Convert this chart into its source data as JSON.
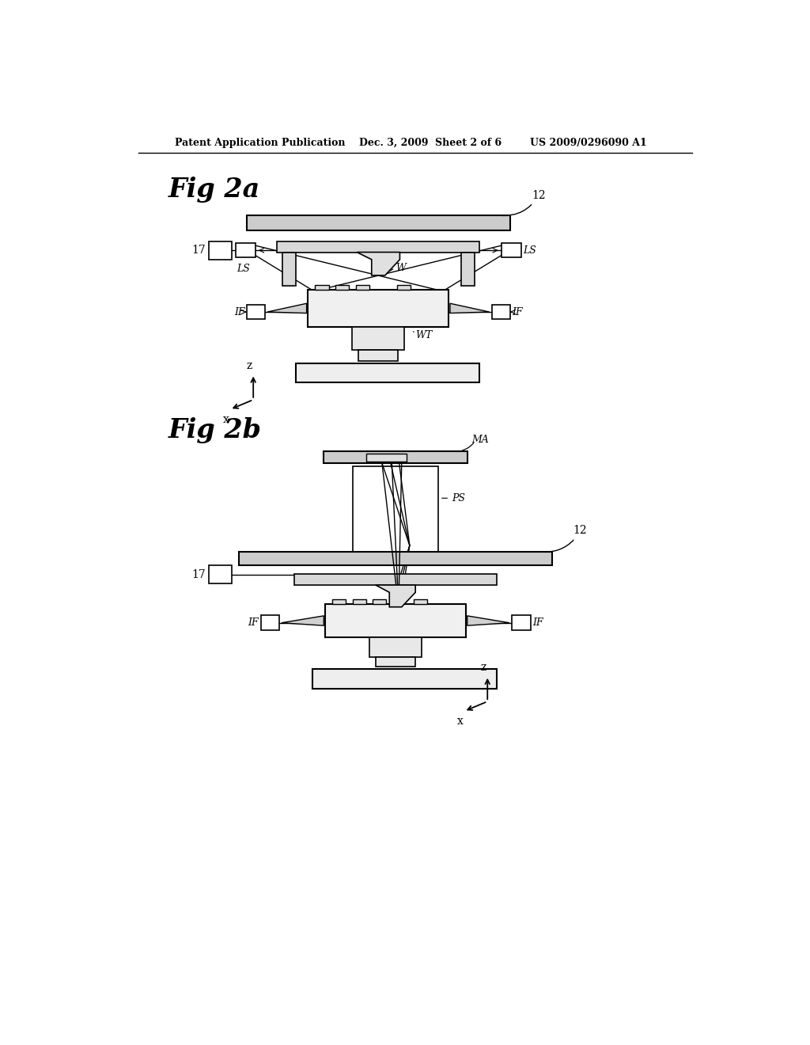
{
  "bg_color": "#ffffff",
  "line_color": "#000000",
  "header_text1": "Patent Application Publication",
  "header_text2": "Dec. 3, 2009",
  "header_text3": "Sheet 2 of 6",
  "header_text4": "US 2009/0296090 A1",
  "fig2a_title": "Fig 2a",
  "fig2b_title": "Fig 2b"
}
